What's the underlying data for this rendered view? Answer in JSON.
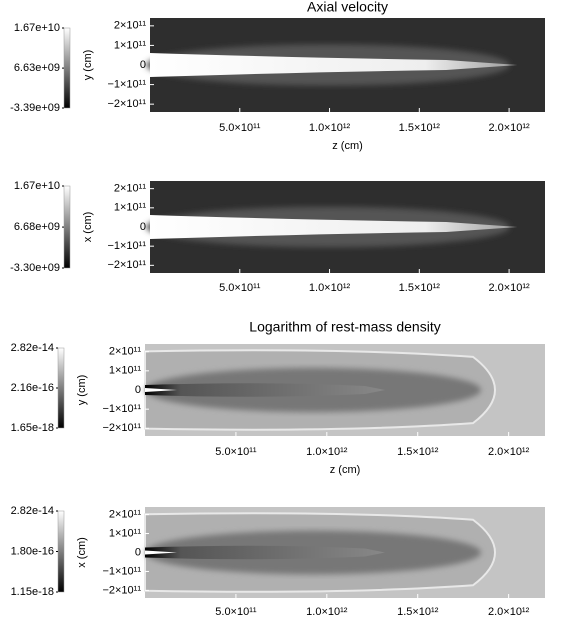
{
  "chart_data": [
    {
      "type": "heatmap",
      "title": "Axial velocity",
      "xlabel": "z (cm)",
      "ylabel": "y (cm)",
      "xlim": [
        0,
        2200000000000
      ],
      "ylim": [
        -240000000000,
        240000000000
      ],
      "xticks": [
        {
          "value": 500000000000,
          "label": "5.0×10¹¹"
        },
        {
          "value": 1000000000000,
          "label": "1.0×10¹²"
        },
        {
          "value": 1500000000000,
          "label": "1.5×10¹²"
        },
        {
          "value": 2000000000000,
          "label": "2.0×10¹²"
        }
      ],
      "yticks": [
        {
          "value": 200000000000,
          "label": "2×10¹¹"
        },
        {
          "value": 100000000000,
          "label": "1×10¹¹"
        },
        0,
        {
          "value": -100000000000,
          "label": "−1×10¹¹"
        },
        {
          "value": -200000000000,
          "label": "−2×10¹¹"
        }
      ],
      "colorbar": {
        "log": false,
        "lim": [
          -3390000000,
          16700000000
        ],
        "ticks": [
          {
            "value": 16700000000,
            "label": "1.67e+10"
          },
          {
            "value": 6630000000,
            "label": "6.63e+09"
          },
          {
            "value": -3390000000,
            "label": "-3.39e+09"
          }
        ]
      }
    },
    {
      "type": "heatmap",
      "ylabel": "x (cm)",
      "xlim": [
        0,
        2200000000000
      ],
      "ylim": [
        -240000000000,
        240000000000
      ],
      "xticks": [
        {
          "value": 500000000000,
          "label": "5.0×10¹¹"
        },
        {
          "value": 1000000000000,
          "label": "1.0×10¹²"
        },
        {
          "value": 1500000000000,
          "label": "1.5×10¹²"
        },
        {
          "value": 2000000000000,
          "label": "2.0×10¹²"
        }
      ],
      "yticks": [
        {
          "value": 200000000000,
          "label": "2×10¹¹"
        },
        {
          "value": 100000000000,
          "label": "1×10¹¹"
        },
        0,
        {
          "value": -100000000000,
          "label": "−1×10¹¹"
        },
        {
          "value": -200000000000,
          "label": "−2×10¹¹"
        }
      ],
      "colorbar": {
        "log": false,
        "lim": [
          -3300000000,
          16700000000
        ],
        "ticks": [
          {
            "value": 16700000000,
            "label": "1.67e+10"
          },
          {
            "value": 6680000000,
            "label": "6.68e+09"
          },
          {
            "value": -3300000000,
            "label": "-3.30e+09"
          }
        ]
      }
    },
    {
      "type": "heatmap",
      "title": "Logarithm of rest-mass density",
      "xlabel": "z (cm)",
      "ylabel": "y (cm)",
      "xlim": [
        0,
        2200000000000
      ],
      "ylim": [
        -240000000000,
        240000000000
      ],
      "xticks": [
        {
          "value": 500000000000,
          "label": "5.0×10¹¹"
        },
        {
          "value": 1000000000000,
          "label": "1.0×10¹²"
        },
        {
          "value": 1500000000000,
          "label": "1.5×10¹²"
        },
        {
          "value": 2000000000000,
          "label": "2.0×10¹²"
        }
      ],
      "yticks": [
        {
          "value": 200000000000,
          "label": "2×10¹¹"
        },
        {
          "value": 100000000000,
          "label": "1×10¹¹"
        },
        0,
        {
          "value": -100000000000,
          "label": "−1×10¹¹"
        },
        {
          "value": -200000000000,
          "label": "−2×10¹¹"
        }
      ],
      "colorbar": {
        "log": true,
        "lim": [
          1.65e-18,
          2.82e-14
        ],
        "ticks": [
          {
            "value": 2.82e-14,
            "label": "2.82e-14"
          },
          {
            "value": 2.16e-16,
            "label": "2.16e-16"
          },
          {
            "value": 1.65e-18,
            "label": "1.65e-18"
          }
        ]
      }
    },
    {
      "type": "heatmap",
      "ylabel": "x (cm)",
      "xlim": [
        0,
        2200000000000
      ],
      "ylim": [
        -240000000000,
        240000000000
      ],
      "xticks": [
        {
          "value": 500000000000,
          "label": "5.0×10¹¹"
        },
        {
          "value": 1000000000000,
          "label": "1.0×10¹²"
        },
        {
          "value": 1500000000000,
          "label": "1.5×10¹²"
        },
        {
          "value": 2000000000000,
          "label": "2.0×10¹²"
        }
      ],
      "yticks": [
        {
          "value": 200000000000,
          "label": "2×10¹¹"
        },
        {
          "value": 100000000000,
          "label": "1×10¹¹"
        },
        0,
        {
          "value": -100000000000,
          "label": "−1×10¹¹"
        },
        {
          "value": -200000000000,
          "label": "−2×10¹¹"
        }
      ],
      "colorbar": {
        "log": true,
        "lim": [
          1.15e-18,
          2.82e-14
        ],
        "ticks": [
          {
            "value": 2.82e-14,
            "label": "2.82e-14"
          },
          {
            "value": 1.8e-16,
            "label": "1.80e-16"
          },
          {
            "value": 1.15e-18,
            "label": "1.15e-18"
          }
        ]
      }
    }
  ]
}
